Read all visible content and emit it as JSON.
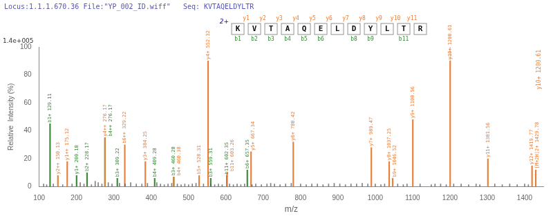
{
  "chart_data": {
    "type": "bar",
    "title": "Locus:1.1.1.670.36 File:\"YP_002_ID.wiff\"   Seq: KVTAQELDYLTR",
    "title_color": "#5555bb",
    "x_label": "m/z",
    "y_label": "Relative  Intensity (%)",
    "y_top_label": "1.4e+005",
    "xlim": [
      100,
      1450
    ],
    "xticks": [
      100,
      200,
      300,
      400,
      500,
      600,
      700,
      800,
      900,
      1000,
      1100,
      1200,
      1300,
      1400
    ],
    "ylim": [
      0,
      100
    ],
    "yticks": [
      0,
      20,
      40,
      60,
      80,
      100
    ],
    "grid": false,
    "series": [
      {
        "color": "#555555",
        "x": [
          112,
          120,
          138,
          163,
          188,
          210,
          220,
          240,
          250,
          258,
          268,
          285,
          295,
          315,
          330,
          345,
          360,
          375,
          390,
          415,
          425,
          435,
          445,
          455,
          470,
          480,
          490,
          500,
          510,
          520,
          540,
          560,
          570,
          580,
          590,
          610,
          620,
          630,
          640,
          650,
          670,
          680,
          695,
          710,
          720,
          730,
          745,
          760,
          775,
          800,
          815,
          830,
          845,
          860,
          875,
          890,
          905,
          920,
          935,
          950,
          965,
          980,
          1000,
          1015,
          1025,
          1060,
          1075,
          1085,
          1120,
          1150,
          1160,
          1175,
          1190,
          1210,
          1230,
          1250,
          1270,
          1280,
          1320,
          1340,
          1360,
          1380,
          1400,
          1410
        ],
        "values": [
          2,
          1.5,
          2,
          1.5,
          2,
          3,
          2,
          1.5,
          4,
          3,
          2,
          3,
          2,
          2.5,
          2,
          3,
          2,
          2,
          2.5,
          3,
          2,
          1.5,
          2,
          2.5,
          2,
          1.5,
          2,
          1.5,
          2,
          2.5,
          2,
          2,
          1.5,
          2,
          1.5,
          2,
          1.5,
          2,
          1.5,
          2,
          1.5,
          2,
          1.5,
          2,
          2.5,
          2,
          1.5,
          2,
          2.5,
          2,
          1.5,
          2,
          2,
          1.5,
          2,
          2.5,
          2,
          1.5,
          2,
          2,
          2.5,
          2,
          2,
          1.5,
          2,
          2,
          1.5,
          2,
          2,
          1.5,
          2,
          2,
          1.5,
          2,
          2,
          1.5,
          2,
          1.5,
          2,
          1.5,
          2,
          1.5,
          2,
          1.5
        ]
      },
      {
        "color": "#E8803A",
        "x": [
          150.13,
          175.12,
          276.17,
          329.22,
          384.25,
          460.38,
          528.31,
          552.32,
          603.26,
          667.34,
          780.42,
          989.47,
          1037.25,
          1046.52,
          1100.56,
          1200.61,
          1301.56,
          1419.77,
          1429.78
        ],
        "values": [
          8,
          18,
          35,
          30,
          18,
          7,
          8,
          90,
          10,
          25,
          32,
          28,
          18,
          6,
          48,
          90,
          20,
          15,
          12
        ],
        "labels": [
          "y2++ 150.13",
          "y1++ 175.12",
          "y4++ 276.17",
          "b6++ 329.22",
          "y3+ 384.25",
          "b4+ 460.38",
          "b5+ 528.31",
          "y4+ 552.32",
          "b11+ 603.26",
          "y5+ 667.34",
          "y6+ 780.42",
          "y7+ 989.47",
          "y8+ 1037.25",
          "b9+ 1046.52",
          "y9+ 1100.56",
          "y10+ 1200.61",
          "y11+ 1301.56",
          "y12+ 1419.77",
          "[M+2H]2+ 1429.78"
        ]
      },
      {
        "color": "#3A8A3A",
        "x": [
          129.11,
          200.18,
          228.17,
          276.17,
          309.22,
          409.28,
          460.28,
          559.31,
          602.35,
          657.35
        ],
        "values": [
          45,
          8,
          10,
          35,
          6,
          6,
          7,
          6,
          8,
          12
        ],
        "labels": [
          "b1+ 129.11",
          "y1+ 200.18",
          "b2+ 228.17",
          "b4++ 276.17",
          "b3+ 309.22",
          "b4+ 409.28",
          "b3+ 460.28",
          "b3+ 559.31",
          "b11+ 602.35",
          "b6+ 657.35"
        ]
      }
    ],
    "vline": {
      "x": 1200.61,
      "label": "y10+ 1200.61",
      "color": "#E8803A"
    },
    "sequence": {
      "residues": [
        "K",
        "V",
        "T",
        "A",
        "Q",
        "E",
        "L",
        "D",
        "Y",
        "L",
        "T",
        "R"
      ],
      "charge_label": "2+",
      "charge_color": "blue",
      "b_ions": [
        "b1",
        "b2",
        "b3",
        "b4",
        "b5",
        "b6",
        null,
        "b8",
        "b9",
        null,
        "b11"
      ],
      "b_color": "#3A8A3A",
      "y_ions": [
        "y1",
        "y2",
        "y3",
        "y4",
        "y5",
        "y6",
        "y7",
        "y8",
        "y9",
        "y10",
        "y11"
      ],
      "y_color": "#E8803A"
    }
  }
}
